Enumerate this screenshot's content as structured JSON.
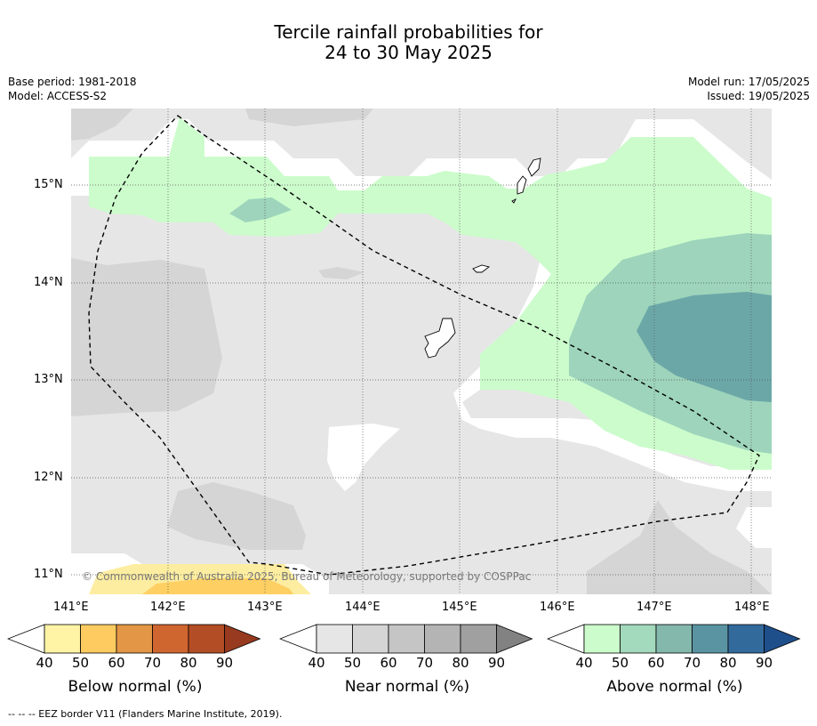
{
  "title": {
    "line1": "Tercile rainfall probabilities for",
    "line2": "24 to 30 May 2025"
  },
  "meta": {
    "base_period": "Base period: 1981-2018",
    "model": "Model: ACCESS-S2",
    "model_run": "Model run: 17/05/2025",
    "issued": "Issued: 19/05/2025"
  },
  "map": {
    "lon_labels": [
      "141°E",
      "142°E",
      "143°E",
      "144°E",
      "145°E",
      "146°E",
      "147°E",
      "148°E"
    ],
    "lat_labels": [
      "15°N",
      "14°N",
      "13°N",
      "12°N",
      "11°N"
    ],
    "copyright": "© Commonwealth of Australia 2025, Bureau of Meteorology, supported by COSPPac",
    "colors": {
      "near_40": "#e6e6e6",
      "near_50": "#d5d5d5",
      "above_40": "#ccfccc",
      "above_50": "#9dd4bb",
      "above_60": "#6ca7a8",
      "below_40": "#fdeda0",
      "below_50": "#fecf62"
    }
  },
  "colorbars": [
    {
      "name": "below",
      "title": "Below normal (%)",
      "ticks": [
        "40",
        "50",
        "60",
        "70",
        "80",
        "90"
      ],
      "colors": [
        "#fff3a6",
        "#fdcb60",
        "#e39646",
        "#d0662f",
        "#b34d25",
        "#973a1f"
      ]
    },
    {
      "name": "near",
      "title": "Near normal (%)",
      "ticks": [
        "40",
        "50",
        "60",
        "70",
        "80",
        "90"
      ],
      "colors": [
        "#e6e6e6",
        "#d5d5d5",
        "#c5c5c5",
        "#b4b4b4",
        "#a0a0a0",
        "#828282"
      ]
    },
    {
      "name": "above",
      "title": "Above normal (%)",
      "ticks": [
        "40",
        "50",
        "60",
        "70",
        "80",
        "90"
      ],
      "colors": [
        "#ccfccc",
        "#a3d9bc",
        "#84b8ad",
        "#5a94a3",
        "#336a9c",
        "#1f4f8a"
      ]
    }
  ],
  "footnote": "--  --  -- EEZ border V11 (Flanders Marine Institute, 2019)."
}
